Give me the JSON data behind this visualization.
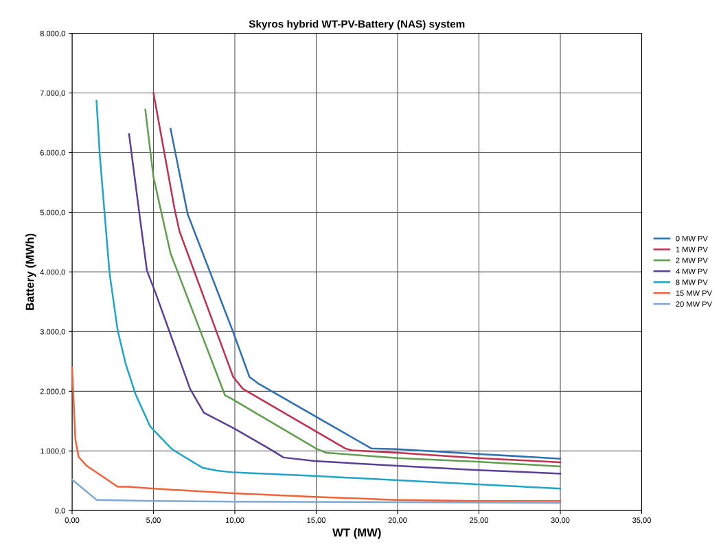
{
  "chart_data": {
    "type": "line",
    "title": "Skyros hybrid WT-PV-Battery (NAS) system",
    "xlabel": "WT (MW)",
    "ylabel": "Battery (MWh)",
    "xlim": [
      0,
      35
    ],
    "xticks": [
      {
        "value": 0,
        "label": "0,00"
      },
      {
        "value": 5,
        "label": "5,00"
      },
      {
        "value": 10,
        "label": "10,00"
      },
      {
        "value": 15,
        "label": "15,00"
      },
      {
        "value": 20,
        "label": "20,00"
      },
      {
        "value": 25,
        "label": "25,00"
      },
      {
        "value": 30,
        "label": "30,00"
      },
      {
        "value": 35,
        "label": "35,00"
      }
    ],
    "ylim": [
      0,
      8000
    ],
    "yticks": [
      {
        "value": 0,
        "label": "0,0"
      },
      {
        "value": 1000,
        "label": "1.000,0"
      },
      {
        "value": 2000,
        "label": "2.000,0"
      },
      {
        "value": 3000,
        "label": "3.000,0"
      },
      {
        "value": 4000,
        "label": "4.000,0"
      },
      {
        "value": 5000,
        "label": "5.000,0"
      },
      {
        "value": 6000,
        "label": "6.000,0"
      },
      {
        "value": 7000,
        "label": "7.000,0"
      },
      {
        "value": 8000,
        "label": "8.000,0"
      }
    ],
    "grid": true,
    "legend": "right",
    "marker": "none",
    "line_style": "solid",
    "series": [
      {
        "name": "0 MW PV",
        "color": "#2e6fb5",
        "x": [
          6.05,
          7.1,
          9.9,
          10.9,
          11.5,
          18.4,
          20.0,
          24.9,
          30.0
        ],
        "values": [
          6400,
          4970,
          2990,
          2240,
          2120,
          1040,
          1030,
          950,
          870
        ]
      },
      {
        "name": "1 MW PV",
        "color": "#c0304f",
        "x": [
          5.0,
          6.3,
          6.6,
          9.9,
          10.5,
          16.8,
          17.2,
          20.0,
          24.9,
          30.0
        ],
        "values": [
          7000,
          5050,
          4680,
          2240,
          2040,
          1040,
          1010,
          970,
          880,
          810
        ]
      },
      {
        "name": "2 MW PV",
        "color": "#5f9e4c",
        "x": [
          4.5,
          5.0,
          6.05,
          9.4,
          9.7,
          15.0,
          15.6,
          20.0,
          24.9,
          30.0
        ],
        "values": [
          6720,
          5590,
          4310,
          1930,
          1890,
          1040,
          970,
          880,
          820,
          740
        ]
      },
      {
        "name": "4 MW PV",
        "color": "#5a3f95",
        "x": [
          3.5,
          4.2,
          4.6,
          5.1,
          7.25,
          8.1,
          10.0,
          12.1,
          13.0,
          14.9,
          20.0,
          24.9,
          30.0
        ],
        "values": [
          6310,
          4840,
          4020,
          3670,
          2040,
          1640,
          1370,
          1040,
          890,
          830,
          750,
          680,
          620
        ]
      },
      {
        "name": "8 MW PV",
        "color": "#1ea5c8",
        "x": [
          1.5,
          1.7,
          2.3,
          2.8,
          3.3,
          3.9,
          4.8,
          6.1,
          6.3,
          8.0,
          8.9,
          9.9,
          14.9,
          20.0,
          24.9,
          30.0
        ],
        "values": [
          6870,
          5960,
          3980,
          3020,
          2450,
          1950,
          1410,
          1040,
          1000,
          720,
          670,
          640,
          580,
          510,
          440,
          370
        ]
      },
      {
        "name": "15 MW PV",
        "color": "#f0623a",
        "x": [
          0.0,
          0.2,
          0.4,
          0.9,
          2.8,
          3.4,
          4.9,
          9.9,
          14.9,
          19.9,
          24.9,
          30.0
        ],
        "values": [
          2400,
          1200,
          900,
          750,
          400,
          400,
          370,
          290,
          230,
          180,
          160,
          160
        ]
      },
      {
        "name": "20 MW PV",
        "color": "#7fa7d6",
        "x": [
          0.0,
          1.5,
          5.0,
          10.0,
          20.0,
          30.0
        ],
        "values": [
          520,
          180,
          160,
          150,
          140,
          130
        ]
      }
    ]
  }
}
